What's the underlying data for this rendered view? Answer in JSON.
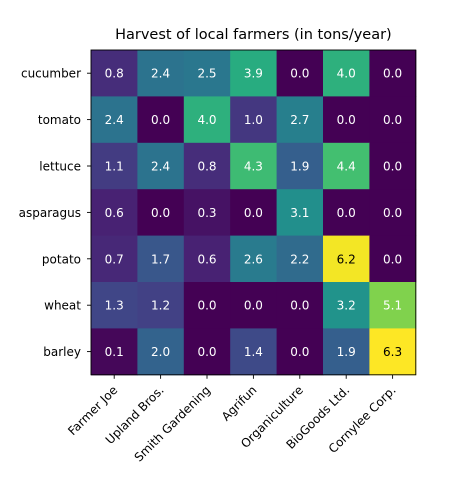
{
  "chart_data": {
    "type": "heatmap",
    "title": "Harvest of local farmers (in tons/year)",
    "rows": [
      "cucumber",
      "tomato",
      "lettuce",
      "asparagus",
      "potato",
      "wheat",
      "barley"
    ],
    "columns": [
      "Farmer Joe",
      "Upland Bros.",
      "Smith Gardening",
      "Agrifun",
      "Organiculture",
      "BioGoods Ltd.",
      "Cornylee Corp."
    ],
    "values": [
      [
        0.8,
        2.4,
        2.5,
        3.9,
        0.0,
        4.0,
        0.0
      ],
      [
        2.4,
        0.0,
        4.0,
        1.0,
        2.7,
        0.0,
        0.0
      ],
      [
        1.1,
        2.4,
        0.8,
        4.3,
        1.9,
        4.4,
        0.0
      ],
      [
        0.6,
        0.0,
        0.3,
        0.0,
        3.1,
        0.0,
        0.0
      ],
      [
        0.7,
        1.7,
        0.6,
        2.6,
        2.2,
        6.2,
        0.0
      ],
      [
        1.3,
        1.2,
        0.0,
        0.0,
        0.0,
        3.2,
        5.1
      ],
      [
        0.1,
        2.0,
        0.0,
        1.4,
        0.0,
        1.9,
        6.3
      ]
    ],
    "colormap": "viridis",
    "value_range": [
      0.0,
      6.3
    ],
    "grid": false
  }
}
